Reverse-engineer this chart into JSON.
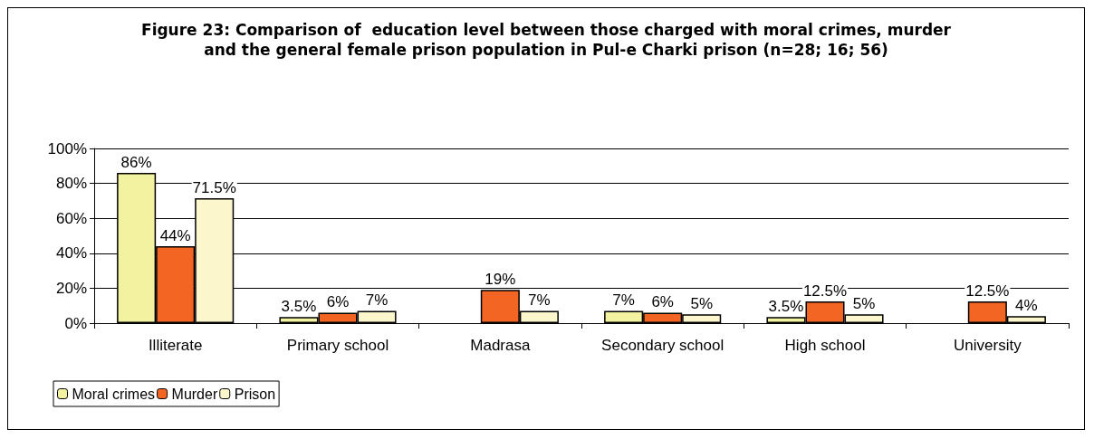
{
  "chart_data": {
    "type": "bar",
    "title": "Figure 23: Comparison of  education level between those charged with moral crimes, murder\nand the general female prison population in Pul-e Charki prison (n=28; 16; 56)",
    "categories": [
      "Illiterate",
      "Primary school",
      "Madrasa",
      "Secondary school",
      "High school",
      "University"
    ],
    "series": [
      {
        "name": "Moral crimes",
        "color": "#f2f2a0",
        "values": [
          86,
          3.5,
          null,
          7,
          3.5,
          null
        ],
        "value_labels": [
          "86%",
          "3.5%",
          null,
          "7%",
          "3.5%",
          null
        ]
      },
      {
        "name": "Murder",
        "color": "#f26522",
        "values": [
          44,
          6,
          19,
          6,
          12.5,
          12.5
        ],
        "value_labels": [
          "44%",
          "6%",
          "19%",
          "6%",
          "12.5%",
          "12.5%"
        ]
      },
      {
        "name": "Prison",
        "color": "#fbf6cc",
        "values": [
          71.5,
          7,
          7,
          5,
          5,
          4
        ],
        "value_labels": [
          "71.5%",
          "7%",
          "7%",
          "5%",
          "5%",
          "4%"
        ]
      }
    ],
    "ylim": [
      0,
      100
    ],
    "yticks": [
      {
        "value": 0,
        "label": "0%"
      },
      {
        "value": 20,
        "label": "20%"
      },
      {
        "value": 40,
        "label": "40%"
      },
      {
        "value": 60,
        "label": "60%"
      },
      {
        "value": 80,
        "label": "80%"
      },
      {
        "value": 100,
        "label": "100%"
      }
    ],
    "grid": "y",
    "legend": "bottom left"
  }
}
